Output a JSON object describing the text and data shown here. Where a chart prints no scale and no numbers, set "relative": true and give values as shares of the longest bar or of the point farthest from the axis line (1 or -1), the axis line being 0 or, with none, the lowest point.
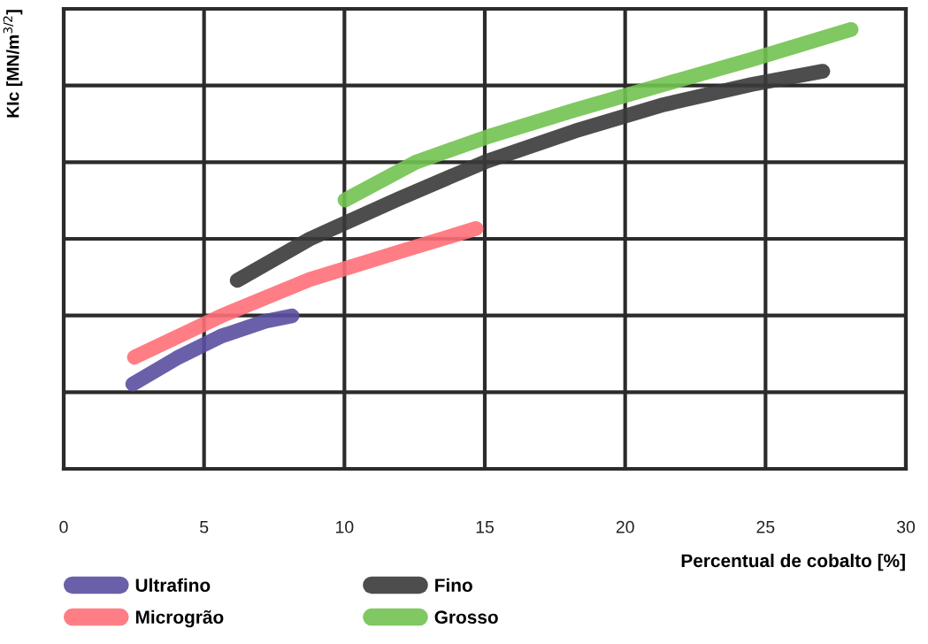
{
  "chart_data": {
    "type": "line",
    "xlabel": "Percentual de cobalto [%]",
    "ylabel": "KIc [MN/m$^{3/2}$]",
    "relative": true,
    "xlim": [
      0,
      30
    ],
    "xticks": [
      0,
      5,
      10,
      15,
      20,
      25,
      30
    ],
    "grid": true,
    "legend": "bottom",
    "line_style": "solid",
    "marker": "none",
    "series": [
      {
        "name": "Ultrafino",
        "color": "#5a4fa0",
        "x": [
          2.46,
          4.03,
          5.61,
          7.19,
          8.13
        ],
        "values": [
          0.193,
          0.252,
          0.302,
          0.336,
          0.348
        ]
      },
      {
        "name": "Microgrão",
        "color": "#ff6f78",
        "x": [
          2.52,
          5.61,
          8.76,
          11.91,
          14.69
        ],
        "values": [
          0.254,
          0.348,
          0.431,
          0.493,
          0.547
        ]
      },
      {
        "name": "Fino",
        "color": "#3a3a3a",
        "x": [
          6.18,
          8.76,
          11.91,
          15.06,
          18.22,
          21.37,
          24.52,
          27.04
        ],
        "values": [
          0.429,
          0.523,
          0.614,
          0.7,
          0.769,
          0.829,
          0.875,
          0.905
        ]
      },
      {
        "name": "Grosso",
        "color": "#72c250",
        "x": [
          10.02,
          12.54,
          15.06,
          18.22,
          21.37,
          24.52,
          28.05
        ],
        "values": [
          0.612,
          0.698,
          0.755,
          0.817,
          0.875,
          0.932,
          1.0
        ]
      }
    ]
  }
}
